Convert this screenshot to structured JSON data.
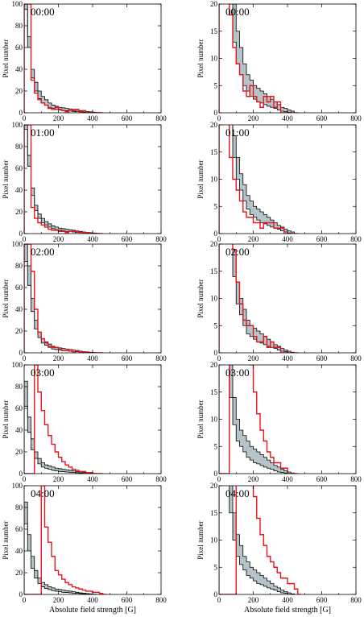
{
  "chart_data": {
    "type": "step-histogram",
    "xlabel": "Absolute field strength [G]",
    "ylabel": "Pixel number",
    "xlim": [
      0,
      800
    ],
    "xticks": [
      0,
      200,
      400,
      600,
      800
    ],
    "left_ylim": [
      0,
      100
    ],
    "left_yticks": [
      0,
      20,
      40,
      60,
      80,
      100
    ],
    "right_ylim": [
      0,
      20
    ],
    "right_yticks": [
      0,
      5,
      10,
      15,
      20
    ],
    "colors": {
      "band_fill": "#b4c4c9",
      "band_line": "#000000",
      "red": "#e8141c"
    },
    "panels": [
      {
        "time": "00:00",
        "bin_starts": [
          0,
          20,
          40,
          60,
          80,
          100,
          120,
          140,
          160,
          180,
          200,
          220,
          240,
          260,
          280,
          300,
          320,
          340,
          360,
          380,
          400,
          420,
          440
        ],
        "band_upper": [
          100,
          70,
          40,
          28,
          20,
          15,
          12,
          9,
          7,
          6,
          5,
          4.5,
          4,
          3.5,
          3,
          2.5,
          2,
          1.5,
          1,
          0.8,
          0.5,
          0.3,
          0
        ],
        "band_lower": [
          95,
          60,
          32,
          20,
          13,
          9,
          7,
          5,
          4,
          3,
          2.5,
          2,
          1.8,
          1.5,
          1.2,
          1,
          0.8,
          0.5,
          0.3,
          0.2,
          0.1,
          0,
          0
        ],
        "red": [
          100,
          100,
          30,
          18,
          12,
          9,
          7,
          4,
          3,
          5,
          3,
          2,
          1,
          3,
          2,
          3,
          1,
          2,
          0,
          0,
          0,
          0,
          0
        ]
      },
      {
        "time": "01:00",
        "bin_starts": [
          0,
          20,
          40,
          60,
          80,
          100,
          120,
          140,
          160,
          180,
          200,
          220,
          240,
          260,
          280,
          300,
          320,
          340,
          360,
          380,
          400,
          420,
          440
        ],
        "band_upper": [
          100,
          72,
          42,
          26,
          18,
          14,
          11,
          9,
          7,
          6,
          5,
          4.5,
          4,
          3.5,
          3,
          2.5,
          2,
          1.5,
          1.2,
          0.8,
          0.5,
          0.3,
          0
        ],
        "band_lower": [
          96,
          62,
          35,
          21,
          14,
          10,
          8,
          6,
          4.5,
          3.5,
          3,
          2.5,
          2,
          1.8,
          1.5,
          1.2,
          1,
          0.8,
          0.5,
          0.3,
          0.1,
          0,
          0
        ],
        "red": [
          100,
          100,
          24,
          14,
          10,
          8,
          6,
          4,
          3,
          3,
          2,
          2,
          1,
          2,
          2,
          2,
          1,
          1,
          1,
          0,
          0,
          0,
          0
        ]
      },
      {
        "time": "02:00",
        "bin_starts": [
          0,
          20,
          40,
          60,
          80,
          100,
          120,
          140,
          160,
          180,
          200,
          220,
          240,
          260,
          280,
          300,
          320,
          340,
          360,
          380,
          400,
          420,
          440
        ],
        "band_upper": [
          100,
          80,
          50,
          30,
          19,
          13,
          10,
          8,
          6,
          5,
          4.5,
          4,
          3.5,
          3,
          2.5,
          2,
          1.5,
          1.2,
          0.8,
          0.5,
          0.3,
          0.1,
          0
        ],
        "band_lower": [
          84,
          62,
          38,
          22,
          14,
          9,
          7,
          5,
          3.5,
          3,
          2.5,
          2,
          1.8,
          1.5,
          1.2,
          1,
          0.8,
          0.5,
          0.3,
          0.2,
          0,
          0,
          0
        ],
        "red": [
          100,
          100,
          75,
          40,
          19,
          13,
          9,
          6,
          5,
          5,
          3,
          2,
          2,
          3,
          1,
          2,
          1,
          1,
          0,
          0,
          0,
          0,
          0
        ]
      },
      {
        "time": "03:00",
        "bin_starts": [
          0,
          20,
          40,
          60,
          80,
          100,
          120,
          140,
          160,
          180,
          200,
          220,
          240,
          260,
          280,
          300,
          320,
          340,
          360,
          380,
          400,
          420,
          440
        ],
        "band_upper": [
          85,
          52,
          32,
          20,
          14,
          10,
          8,
          7,
          6,
          5,
          4.5,
          4,
          3.5,
          3,
          2.5,
          2,
          1.5,
          1.2,
          0.8,
          0.5,
          0.3,
          0.1,
          0
        ],
        "band_lower": [
          62,
          38,
          22,
          14,
          9,
          6,
          5,
          4,
          3,
          2.5,
          2,
          1.8,
          1.5,
          1.2,
          1,
          0.8,
          0.5,
          0.3,
          0.2,
          0.1,
          0,
          0,
          0
        ],
        "red": [
          0,
          0,
          0,
          100,
          75,
          58,
          45,
          35,
          27,
          20,
          15,
          11,
          8,
          6,
          4,
          3,
          2,
          2,
          1,
          1,
          0,
          0,
          0
        ]
      },
      {
        "time": "04:00",
        "bin_starts": [
          0,
          20,
          40,
          60,
          80,
          100,
          120,
          140,
          160,
          180,
          200,
          220,
          240,
          260,
          280,
          300,
          320,
          340,
          360,
          380,
          400,
          420,
          440,
          460
        ],
        "band_upper": [
          85,
          55,
          35,
          22,
          15,
          11,
          9,
          7,
          6,
          5,
          4.5,
          4,
          3.5,
          3,
          2.5,
          2,
          1.5,
          1.2,
          0.8,
          0.5,
          0.3,
          0.1,
          0,
          0
        ],
        "band_lower": [
          65,
          40,
          24,
          15,
          10,
          7,
          5.5,
          4.5,
          3.5,
          3,
          2.5,
          2,
          1.8,
          1.5,
          1.2,
          1,
          0.8,
          0.5,
          0.3,
          0.2,
          0,
          0,
          0,
          0
        ],
        "red": [
          0,
          0,
          0,
          0,
          0,
          100,
          62,
          48,
          35,
          22,
          18,
          14,
          11,
          9,
          7,
          6,
          5,
          4,
          3,
          3,
          2,
          2,
          1,
          0
        ]
      }
    ]
  }
}
